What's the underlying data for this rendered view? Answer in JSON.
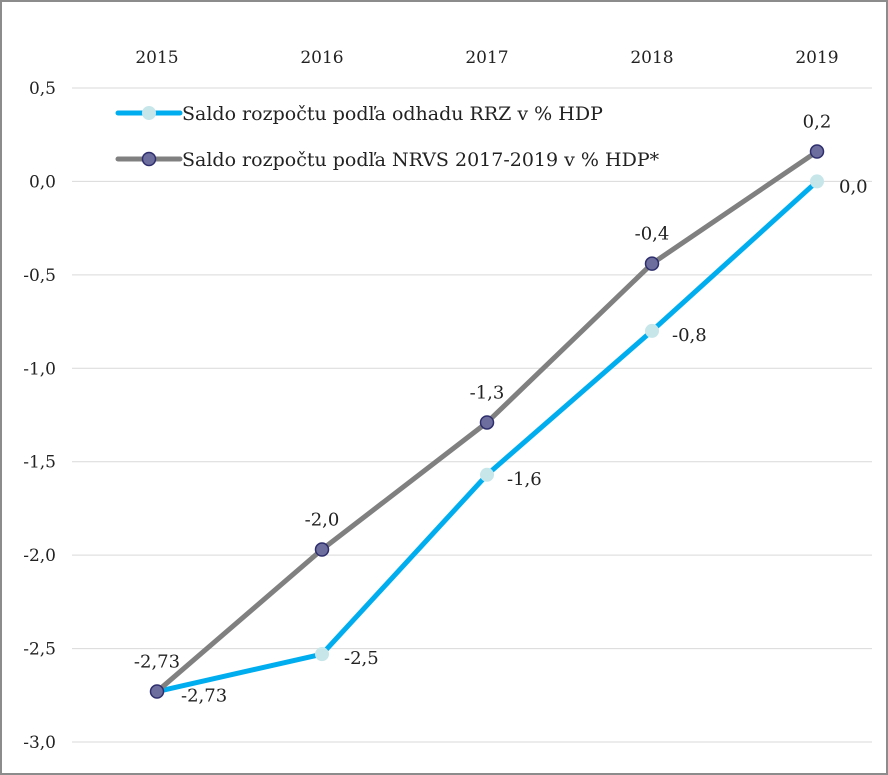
{
  "chart_data": {
    "type": "line",
    "title": "",
    "xlabel": "",
    "ylabel": "",
    "categories": [
      "2015",
      "2016",
      "2017",
      "2018",
      "2019"
    ],
    "ylim": [
      -3.0,
      0.5
    ],
    "y_ticks": [
      "0,5",
      "0,0",
      "-0,5",
      "-1,0",
      "-1,5",
      "-2,0",
      "-2,5",
      "-3,0"
    ],
    "x_axis_position": "top",
    "grid": true,
    "legend_position": "top-left",
    "series": [
      {
        "name": "Saldo rozpočtu podľa odhadu RRZ v % HDP",
        "values": [
          -2.73,
          -2.53,
          -1.57,
          -0.8,
          0.0
        ],
        "labels": [
          "-2,73",
          "-2,5",
          "-1,6",
          "-0,8",
          "0,0"
        ],
        "line_color": "#00aeef",
        "marker_color": "#c6e6ea"
      },
      {
        "name": "Saldo rozpočtu podľa NRVS 2017-2019 v % HDP*",
        "values": [
          -2.73,
          -1.97,
          -1.29,
          -0.44,
          0.16
        ],
        "labels": [
          "-2,73",
          "-2,0",
          "-1,3",
          "-0,4",
          "0,2"
        ],
        "line_color": "#808080",
        "marker_color": "#6e6e9e"
      }
    ]
  }
}
